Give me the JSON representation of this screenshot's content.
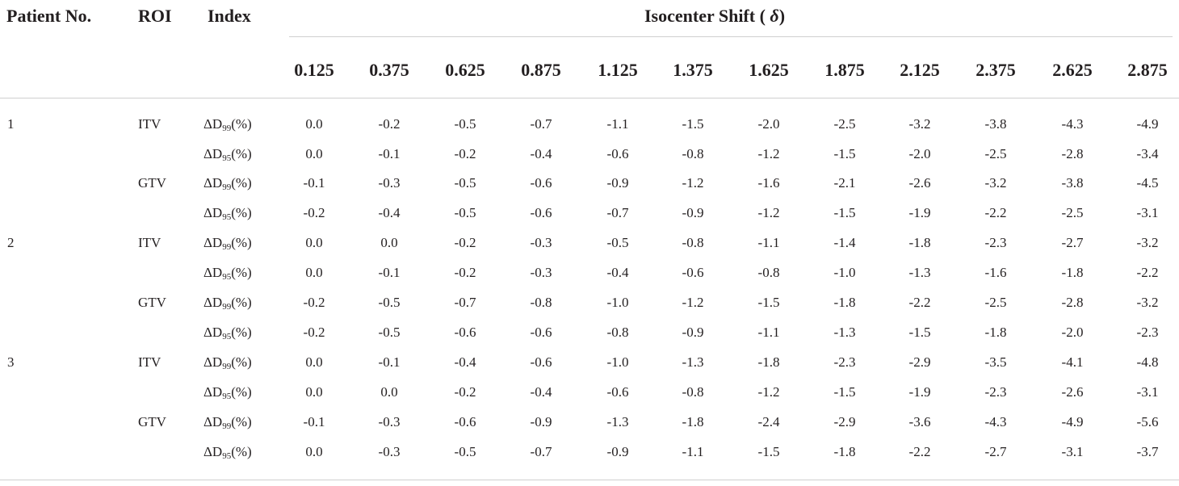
{
  "header": {
    "patient": "Patient No.",
    "roi": "ROI",
    "index": "Index",
    "shift_prefix": "Isocenter Shift (",
    "shift_symbol": "δ",
    "shift_suffix": ")",
    "shifts": [
      "0.125",
      "0.375",
      "0.625",
      "0.875",
      "1.125",
      "1.375",
      "1.625",
      "1.875",
      "2.125",
      "2.375",
      "2.625",
      "2.875"
    ]
  },
  "rows": [
    {
      "patient": "1",
      "roi": "ITV",
      "index_pre": "ΔD",
      "index_sub": "99",
      "index_post": "(%)",
      "values": [
        "0.0",
        "-0.2",
        "-0.5",
        "-0.7",
        "-1.1",
        "-1.5",
        "-2.0",
        "-2.5",
        "-3.2",
        "-3.8",
        "-4.3",
        "-4.9"
      ]
    },
    {
      "patient": "",
      "roi": "",
      "index_pre": "ΔD",
      "index_sub": "95",
      "index_post": "(%)",
      "values": [
        "0.0",
        "-0.1",
        "-0.2",
        "-0.4",
        "-0.6",
        "-0.8",
        "-1.2",
        "-1.5",
        "-2.0",
        "-2.5",
        "-2.8",
        "-3.4"
      ]
    },
    {
      "patient": "",
      "roi": "GTV",
      "index_pre": "ΔD",
      "index_sub": "99",
      "index_post": "(%)",
      "values": [
        "-0.1",
        "-0.3",
        "-0.5",
        "-0.6",
        "-0.9",
        "-1.2",
        "-1.6",
        "-2.1",
        "-2.6",
        "-3.2",
        "-3.8",
        "-4.5"
      ]
    },
    {
      "patient": "",
      "roi": "",
      "index_pre": "ΔD",
      "index_sub": "95",
      "index_post": "(%)",
      "values": [
        "-0.2",
        "-0.4",
        "-0.5",
        "-0.6",
        "-0.7",
        "-0.9",
        "-1.2",
        "-1.5",
        "-1.9",
        "-2.2",
        "-2.5",
        "-3.1"
      ]
    },
    {
      "patient": "2",
      "roi": "ITV",
      "index_pre": "ΔD",
      "index_sub": "99",
      "index_post": "(%)",
      "values": [
        "0.0",
        "0.0",
        "-0.2",
        "-0.3",
        "-0.5",
        "-0.8",
        "-1.1",
        "-1.4",
        "-1.8",
        "-2.3",
        "-2.7",
        "-3.2"
      ]
    },
    {
      "patient": "",
      "roi": "",
      "index_pre": "ΔD",
      "index_sub": "95",
      "index_post": "(%)",
      "values": [
        "0.0",
        "-0.1",
        "-0.2",
        "-0.3",
        "-0.4",
        "-0.6",
        "-0.8",
        "-1.0",
        "-1.3",
        "-1.6",
        "-1.8",
        "-2.2"
      ]
    },
    {
      "patient": "",
      "roi": "GTV",
      "index_pre": "ΔD",
      "index_sub": "99",
      "index_post": "(%)",
      "values": [
        "-0.2",
        "-0.5",
        "-0.7",
        "-0.8",
        "-1.0",
        "-1.2",
        "-1.5",
        "-1.8",
        "-2.2",
        "-2.5",
        "-2.8",
        "-3.2"
      ]
    },
    {
      "patient": "",
      "roi": "",
      "index_pre": "ΔD",
      "index_sub": "95",
      "index_post": "(%)",
      "values": [
        "-0.2",
        "-0.5",
        "-0.6",
        "-0.6",
        "-0.8",
        "-0.9",
        "-1.1",
        "-1.3",
        "-1.5",
        "-1.8",
        "-2.0",
        "-2.3"
      ]
    },
    {
      "patient": "3",
      "roi": "ITV",
      "index_pre": "ΔD",
      "index_sub": "99",
      "index_post": "(%)",
      "values": [
        "0.0",
        "-0.1",
        "-0.4",
        "-0.6",
        "-1.0",
        "-1.3",
        "-1.8",
        "-2.3",
        "-2.9",
        "-3.5",
        "-4.1",
        "-4.8"
      ]
    },
    {
      "patient": "",
      "roi": "",
      "index_pre": "ΔD",
      "index_sub": "95",
      "index_post": "(%)",
      "values": [
        "0.0",
        "0.0",
        "-0.2",
        "-0.4",
        "-0.6",
        "-0.8",
        "-1.2",
        "-1.5",
        "-1.9",
        "-2.3",
        "-2.6",
        "-3.1"
      ]
    },
    {
      "patient": "",
      "roi": "GTV",
      "index_pre": "ΔD",
      "index_sub": "99",
      "index_post": "(%)",
      "values": [
        "-0.1",
        "-0.3",
        "-0.6",
        "-0.9",
        "-1.3",
        "-1.8",
        "-2.4",
        "-2.9",
        "-3.6",
        "-4.3",
        "-4.9",
        "-5.6"
      ]
    },
    {
      "patient": "",
      "roi": "",
      "index_pre": "ΔD",
      "index_sub": "95",
      "index_post": "(%)",
      "values": [
        "0.0",
        "-0.3",
        "-0.5",
        "-0.7",
        "-0.9",
        "-1.1",
        "-1.5",
        "-1.8",
        "-2.2",
        "-2.7",
        "-3.1",
        "-3.7"
      ]
    }
  ]
}
